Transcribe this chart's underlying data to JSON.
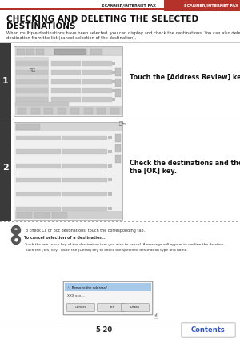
{
  "page_bg": "#ffffff",
  "header_bar_color": "#b5322a",
  "header_text": "SCANNER/INTERNET FAX",
  "header_text_color": "#ffffff",
  "title_line1": "CHECKING AND DELETING THE SELECTED",
  "title_line2": "DESTINATIONS",
  "title_color": "#111111",
  "title_fontsize": 7.5,
  "body_text": "When multiple destinations have been selected, you can display and check the destinations. You can also delete a\ndestination from the list (cancel selection of the destination).",
  "body_fontsize": 3.8,
  "body_color": "#333333",
  "step1_label": "1",
  "step1_instruction": "Touch the [Address Review] key.",
  "step1_instruction_bold": true,
  "step2_label": "2",
  "step2_instruction_line1": "Check the destinations and then touch",
  "step2_instruction_line2": "the [OK] key.",
  "instruction_fontsize": 5.8,
  "step_label_bg": "#3a3a3a",
  "step_label_color": "#ffffff",
  "step_label_fontsize": 8,
  "screen_bg": "#e0e0e0",
  "screen_border": "#aaaaaa",
  "note1_text": "To check Cc or Bcc destinations, touch the corresponding tab.",
  "note2_title": "To cancel selection of a destination...",
  "note2_body1": "Touch the one-touch key of the destination that you wish to cancel. A message will appear to confirm the deletion.",
  "note2_body2": "Touch the [Yes] key.  Touch the [Detail] key to check the specified destination type and name.",
  "note_fontsize": 3.5,
  "page_number": "5-20",
  "page_number_fontsize": 6,
  "contents_text": "Contents",
  "contents_text_color": "#3355bb",
  "separator_color": "#cccccc",
  "dotted_color": "#aaaaaa",
  "dialog_header_color": "#a8c8e8",
  "dialog_bg": "#f5f5f5"
}
